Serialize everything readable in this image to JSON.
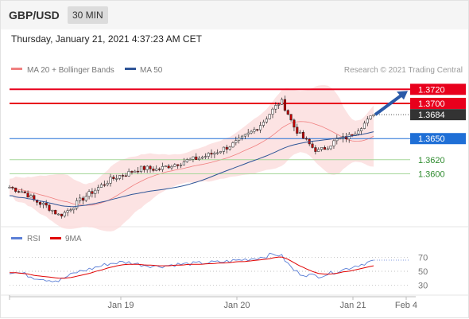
{
  "header": {
    "symbol": "GBP/USD",
    "timeframe": "30 MIN"
  },
  "datetime": "Thursday, January 21, 2021 4:37:23 AM CET",
  "colors": {
    "resistance": "#e8001c",
    "current_price_tag": "#333333",
    "current_level": "#1f6fd6",
    "support": "#a5d79a",
    "support_text": "#2e8b2e",
    "bollinger_fill": "#fbdcdc",
    "bollinger_line": "#f08080",
    "ma50": "#2f5597",
    "candle_up": "#ffffff",
    "candle_down": "#c00000",
    "rsi": "#5b7fd6",
    "rsi_ma": "#e00000",
    "arrow": "#2b5aa8"
  },
  "chart_data": [
    {
      "type": "candlestick",
      "title": "",
      "legend": [
        {
          "name": "MA 20 + Bollinger Bands",
          "color": "#f08080"
        },
        {
          "name": "MA 50",
          "color": "#2f5597"
        }
      ],
      "credit": "Research © 2021 Trading Central",
      "ylim": [
        1.3535,
        1.3735
      ],
      "levels": [
        {
          "label": "1.3720",
          "value": 1.372,
          "kind": "resistance"
        },
        {
          "label": "1.3700",
          "value": 1.37,
          "kind": "resistance"
        },
        {
          "label": "1.3684",
          "value": 1.3684,
          "kind": "current"
        },
        {
          "label": "1.3650",
          "value": 1.365,
          "kind": "pivot"
        },
        {
          "label": "1.3620",
          "value": 1.362,
          "kind": "support"
        },
        {
          "label": "1.3600",
          "value": 1.36,
          "kind": "support"
        }
      ],
      "x_ticks": [
        "Jan 19",
        "Jan 20",
        "Jan 21",
        "Feb 4"
      ],
      "close_path": [
        1.3581,
        1.3578,
        1.3575,
        1.357,
        1.3562,
        1.3558,
        1.3554,
        1.3548,
        1.3541,
        1.3545,
        1.3552,
        1.3559,
        1.3566,
        1.3572,
        1.3578,
        1.3584,
        1.359,
        1.3594,
        1.3598,
        1.36,
        1.3604,
        1.3607,
        1.3608,
        1.3607,
        1.3606,
        1.3609,
        1.3612,
        1.3614,
        1.3617,
        1.3619,
        1.3621,
        1.3623,
        1.3626,
        1.3629,
        1.3633,
        1.3637,
        1.3641,
        1.3646,
        1.3652,
        1.3658,
        1.3665,
        1.3673,
        1.3684,
        1.3694,
        1.3704,
        1.3688,
        1.3668,
        1.3656,
        1.3647,
        1.3638,
        1.3632,
        1.3636,
        1.3642,
        1.3648,
        1.365,
        1.3653,
        1.366,
        1.3668,
        1.3675,
        1.3684
      ]
    },
    {
      "type": "line",
      "legend": [
        {
          "name": "RSI",
          "color": "#5b7fd6"
        },
        {
          "name": "9MA",
          "color": "#e00000"
        }
      ],
      "ylim": [
        20,
        80
      ],
      "y_ticks": [
        70,
        50,
        30
      ],
      "rsi_path": [
        49,
        48,
        47,
        44,
        41,
        40,
        38,
        37,
        36,
        41,
        45,
        49,
        51,
        53,
        56,
        58,
        61,
        62,
        63,
        63,
        62,
        60,
        59,
        58,
        57,
        58,
        59,
        60,
        60,
        61,
        61,
        62,
        62,
        63,
        63,
        64,
        65,
        66,
        67,
        68,
        69,
        71,
        73,
        75,
        73,
        62,
        52,
        47,
        45,
        44,
        43,
        45,
        47,
        50,
        52,
        55,
        58,
        60,
        63,
        65
      ],
      "ma_path": [
        48,
        48,
        47,
        46,
        44,
        43,
        42,
        41,
        40,
        40,
        41,
        43,
        45,
        47,
        50,
        52,
        55,
        57,
        59,
        60,
        60,
        60,
        59,
        59,
        58,
        58,
        58,
        59,
        59,
        60,
        60,
        60,
        61,
        61,
        62,
        62,
        63,
        64,
        64,
        65,
        66,
        67,
        68,
        70,
        71,
        68,
        63,
        58,
        54,
        50,
        47,
        46,
        46,
        47,
        49,
        50,
        52,
        54,
        56,
        58
      ]
    }
  ]
}
